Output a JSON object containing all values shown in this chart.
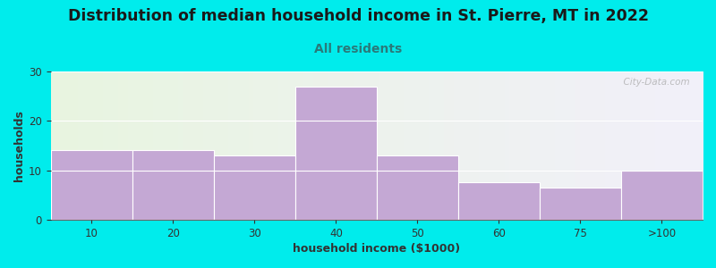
{
  "title": "Distribution of median household income in St. Pierre, MT in 2022",
  "subtitle": "All residents",
  "xlabel": "household income ($1000)",
  "ylabel": "households",
  "categories": [
    "10",
    "20",
    "30",
    "40",
    "50",
    "60",
    "75",
    ">100"
  ],
  "values": [
    14,
    14,
    13,
    27,
    13,
    7.5,
    6.5,
    10
  ],
  "bar_color": "#c4a8d4",
  "background_color": "#00ecec",
  "ylim": [
    0,
    30
  ],
  "yticks": [
    0,
    10,
    20,
    30
  ],
  "title_fontsize": 12.5,
  "subtitle_fontsize": 10,
  "subtitle_color": "#2a7a7a",
  "axis_label_fontsize": 9,
  "watermark": "  City-Data.com"
}
